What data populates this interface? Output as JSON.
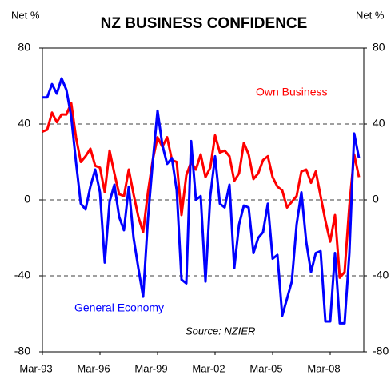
{
  "chart_data": {
    "type": "line",
    "title": "NZ BUSINESS CONFIDENCE",
    "ylabel": "Net %",
    "y2label": "Net %",
    "source": "Source: NZIER",
    "categories": [
      "Mar-93",
      null,
      null,
      null,
      null,
      null,
      null,
      null,
      null,
      null,
      null,
      null,
      "Mar-96",
      null,
      null,
      null,
      null,
      null,
      null,
      null,
      null,
      null,
      null,
      null,
      "Mar-99",
      null,
      null,
      null,
      null,
      null,
      null,
      null,
      null,
      null,
      null,
      null,
      "Mar-02",
      null,
      null,
      null,
      null,
      null,
      null,
      null,
      null,
      null,
      null,
      null,
      "Mar-05",
      null,
      null,
      null,
      null,
      null,
      null,
      null,
      null,
      null,
      null,
      null,
      "Mar-08",
      null,
      null,
      null,
      null,
      null,
      null
    ],
    "series": [
      {
        "name": "Own Business",
        "color": "#ff0000",
        "values": [
          36,
          37,
          46,
          41,
          45,
          45,
          51,
          33,
          20,
          23,
          27,
          18,
          17,
          4,
          26,
          14,
          3,
          2,
          16,
          3,
          -9,
          -17,
          4,
          21,
          33,
          28,
          33,
          21,
          20,
          -8,
          13,
          20,
          16,
          24,
          12,
          17,
          34,
          25,
          26,
          23,
          10,
          14,
          30,
          24,
          11,
          14,
          21,
          23,
          12,
          7,
          5,
          -4,
          -1,
          2,
          15,
          16,
          9,
          15,
          2,
          -11,
          -22,
          -8,
          -41,
          -38,
          -3,
          24,
          12
        ]
      },
      {
        "name": "General Economy",
        "color": "#0000ff",
        "values": [
          54,
          54,
          61,
          56,
          64,
          58,
          44,
          20,
          -2,
          -5,
          7,
          16,
          4,
          -33,
          -1,
          8,
          -9,
          -16,
          7,
          -20,
          -36,
          -51,
          -10,
          20,
          47,
          29,
          19,
          22,
          5,
          -42,
          -44,
          31,
          0,
          2,
          -43,
          2,
          23,
          -2,
          -4,
          8,
          -36,
          -13,
          -3,
          -4,
          -28,
          -20,
          -17,
          -2,
          -31,
          -29,
          -61,
          -52,
          -43,
          -13,
          4,
          -22,
          -38,
          -28,
          -27,
          -64,
          -64,
          -28,
          -65,
          -65,
          -28,
          35,
          22
        ]
      }
    ],
    "ylim": [
      -80,
      80
    ],
    "yticks": [
      -80,
      -40,
      0,
      40,
      80
    ],
    "y2lim": [
      -80,
      80
    ],
    "y2ticks": [
      -80,
      -40,
      0,
      40,
      80
    ],
    "grid": true
  }
}
